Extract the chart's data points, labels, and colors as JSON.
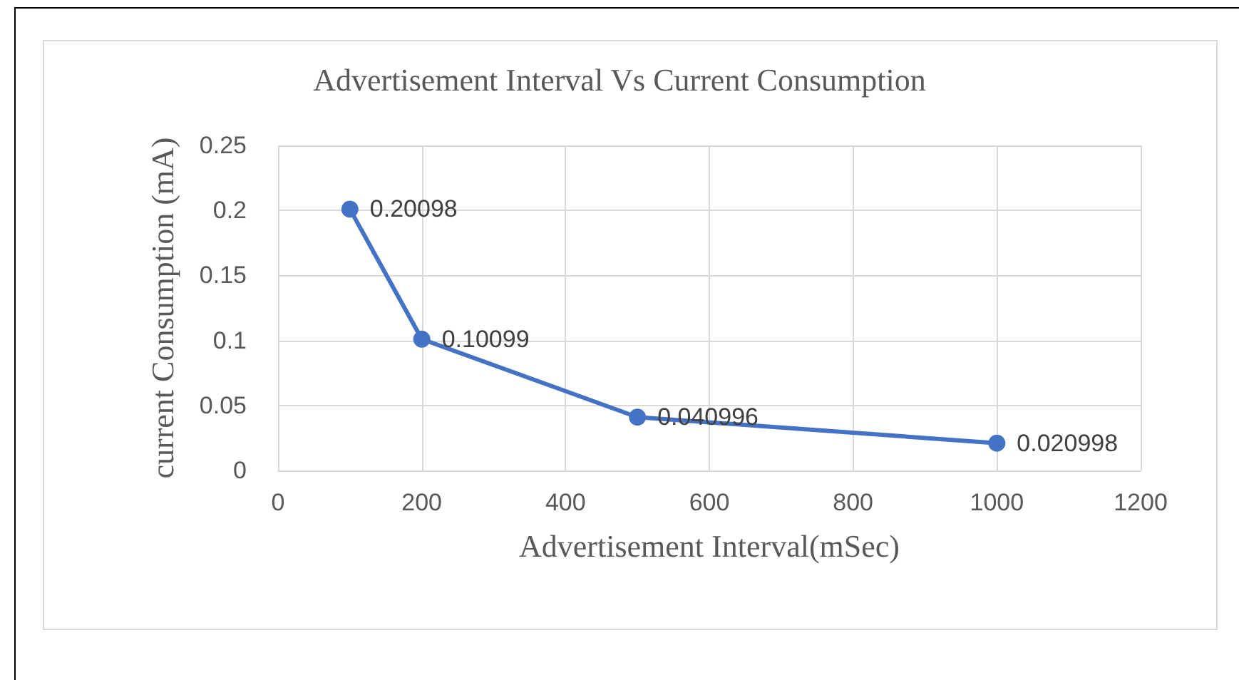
{
  "chart_data": {
    "type": "line",
    "title": "Advertisement Interval Vs Current Consumption",
    "xlabel": "Advertisement Interval(mSec)",
    "ylabel": "current Consumption (mA)",
    "x": [
      100,
      200,
      500,
      1000
    ],
    "series": [
      {
        "color": "#4472c4",
        "values": [
          0.20098,
          0.10099,
          0.040996,
          0.020998
        ]
      }
    ],
    "xlim": [
      0,
      1200
    ],
    "xticks": [
      0,
      200,
      400,
      600,
      800,
      1000,
      1200
    ],
    "ylim": [
      0,
      0.25
    ],
    "yticks": [
      0,
      0.05,
      0.1,
      0.15,
      0.2,
      0.25
    ],
    "grid": true,
    "marker": "circle",
    "line_style": "solid",
    "data_labels": true
  }
}
